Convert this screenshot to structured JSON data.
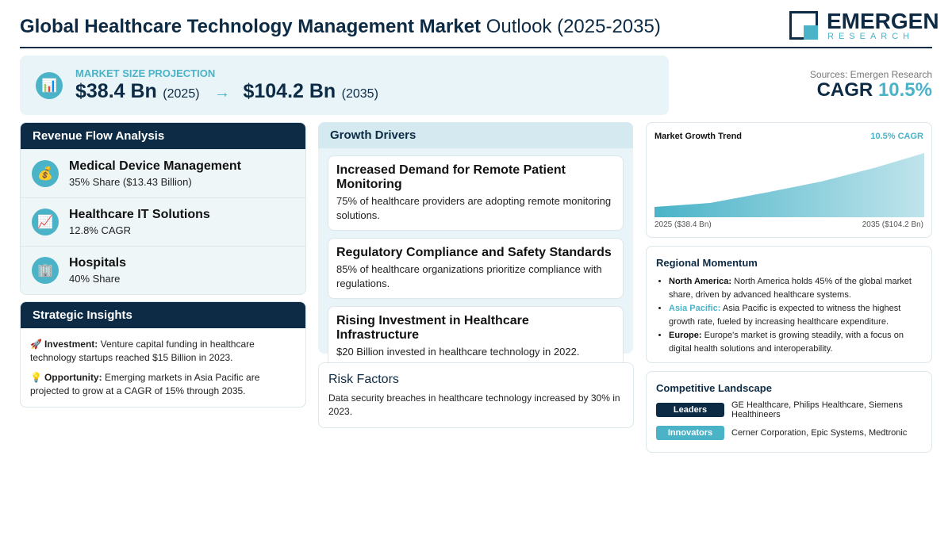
{
  "header": {
    "title_bold": "Global Healthcare Technology Management Market",
    "title_rest": "Outlook (2025-2035)",
    "logo": {
      "name": "EMERGEN",
      "sub": "RESEARCH"
    }
  },
  "projection": {
    "icon": "📊",
    "label": "MARKET SIZE PROJECTION",
    "start_value": "$38.4 Bn",
    "start_year": "(2025)",
    "arrow": "→",
    "end_value": "$104.2 Bn",
    "end_year": "(2035)"
  },
  "cagr": {
    "source": "Sources: Emergen Research",
    "label": "CAGR",
    "value": "10.5%"
  },
  "revenue": {
    "title": "Revenue Flow Analysis",
    "items": [
      {
        "icon": "💰",
        "name": "Medical Device Management",
        "detail": "35% Share ($13.43 Billion)"
      },
      {
        "icon": "📈",
        "name": "Healthcare IT Solutions",
        "detail": "12.8% CAGR"
      },
      {
        "icon": "🏢",
        "name": "Hospitals",
        "detail": "40% Share"
      }
    ]
  },
  "insights": {
    "title": "Strategic Insights",
    "items": [
      {
        "icon": "🚀",
        "label": "Investment:",
        "text": "Venture capital funding in healthcare technology startups reached $15 Billion in 2023."
      },
      {
        "icon": "💡",
        "label": "Opportunity:",
        "text": "Emerging markets in Asia Pacific are projected to grow at a CAGR of 15% through 2035."
      }
    ]
  },
  "drivers": {
    "title": "Growth Drivers",
    "items": [
      {
        "title": "Increased Demand for Remote Patient Monitoring",
        "text": "75% of healthcare providers are adopting remote monitoring solutions."
      },
      {
        "title": "Regulatory Compliance and Safety Standards",
        "text": "85% of healthcare organizations prioritize compliance with regulations."
      },
      {
        "title": "Rising Investment in Healthcare Infrastructure",
        "text": "$20 Billion invested in healthcare technology in 2022."
      }
    ]
  },
  "risk": {
    "title": "Risk Factors",
    "text": "Data security breaches in healthcare technology increased by 30% in 2023."
  },
  "trend": {
    "title": "Market Growth Trend",
    "badge": "10.5% CAGR",
    "start": "2025 ($38.4 Bn)",
    "end": "2035 ($104.2 Bn)"
  },
  "regional": {
    "title": "Regional Momentum",
    "items": [
      {
        "label": "North America:",
        "text": "North America holds 45% of the global market share, driven by advanced healthcare systems."
      },
      {
        "label": "Asia Pacific:",
        "text": "Asia Pacific is expected to witness the highest growth rate, fueled by increasing healthcare expenditure."
      },
      {
        "label": "Europe:",
        "text": "Europe's market is growing steadily, with a focus on digital health solutions and interoperability."
      }
    ]
  },
  "competitive": {
    "title": "Competitive Landscape",
    "rows": [
      {
        "tag": "Leaders",
        "text": "GE Healthcare, Philips Healthcare, Siemens Healthineers"
      },
      {
        "tag": "Innovators",
        "text": "Cerner Corporation, Epic Systems, Medtronic"
      }
    ]
  }
}
